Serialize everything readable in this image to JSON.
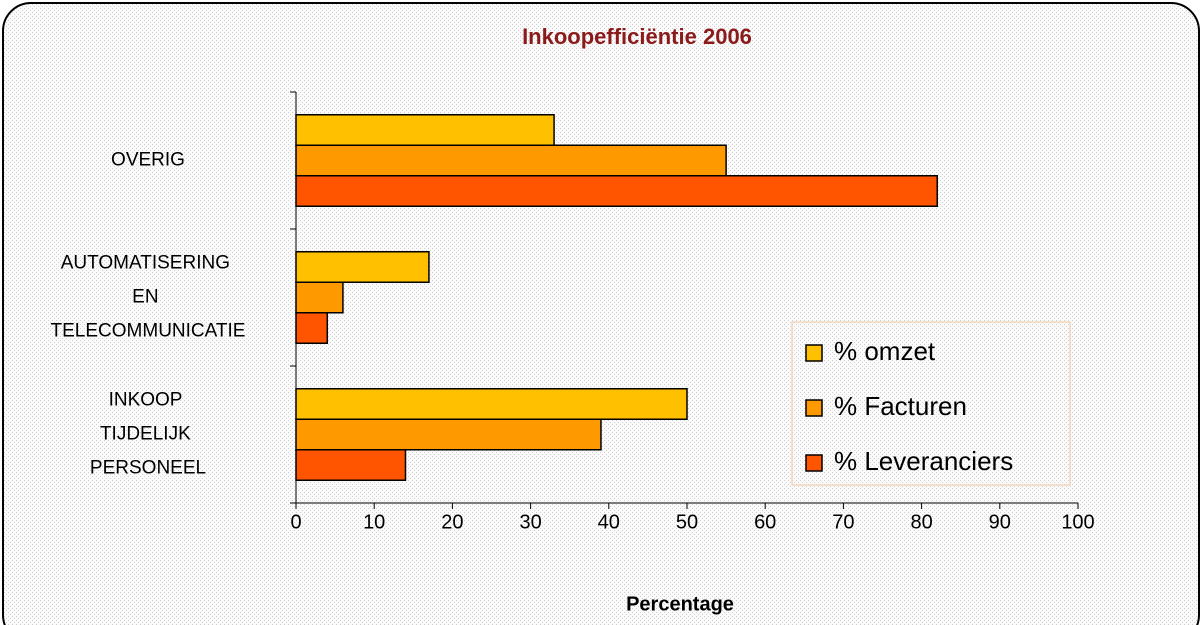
{
  "chart_data": {
    "type": "hbar",
    "title": "Inkoopefficiëntie 2006",
    "x_label": "Percentage",
    "categories": [
      "INKOOP TIJDELIJK PERSONEEL",
      "AUTOMATISERING EN TELECOMMUNICATIE",
      "OVERIG"
    ],
    "series": [
      {
        "name": "% omzet",
        "color": "#ffc000",
        "values": [
          50,
          17,
          33
        ]
      },
      {
        "name": "% Facturen",
        "color": "#ff9900",
        "values": [
          39,
          6,
          55
        ]
      },
      {
        "name": "% Leveranciers",
        "color": "#ff5500",
        "values": [
          14,
          4,
          82
        ]
      }
    ],
    "xlim": [
      0,
      100
    ],
    "xticks": [
      0,
      10,
      20,
      30,
      40,
      50,
      60,
      70,
      80,
      90,
      100
    ],
    "legend": "right"
  }
}
